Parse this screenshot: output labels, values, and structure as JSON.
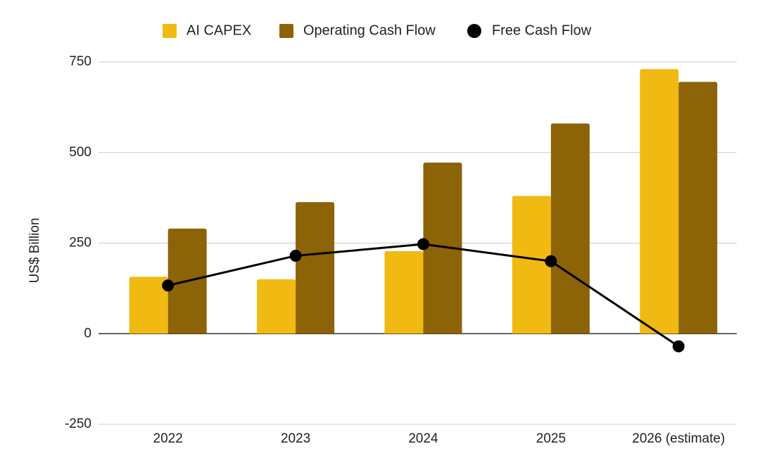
{
  "chart_data": {
    "type": "bar",
    "title": "",
    "xlabel": "",
    "ylabel": "US$ Billion",
    "ylim": [
      -250,
      750
    ],
    "yticks": [
      750,
      500,
      250,
      0,
      -250
    ],
    "grid": true,
    "legend_position": "top",
    "categories": [
      "2022",
      "2023",
      "2024",
      "2025",
      "2026 (estimate)"
    ],
    "series": [
      {
        "name": "AI CAPEX",
        "kind": "bar",
        "color": "#F0BA12",
        "values": [
          157,
          150,
          228,
          380,
          730
        ]
      },
      {
        "name": "Operating Cash Flow",
        "kind": "bar",
        "color": "#8C6306",
        "values": [
          290,
          363,
          472,
          580,
          695
        ]
      },
      {
        "name": "Free Cash Flow",
        "kind": "line",
        "color": "#000000",
        "values": [
          133,
          215,
          247,
          200,
          -35
        ]
      }
    ]
  }
}
